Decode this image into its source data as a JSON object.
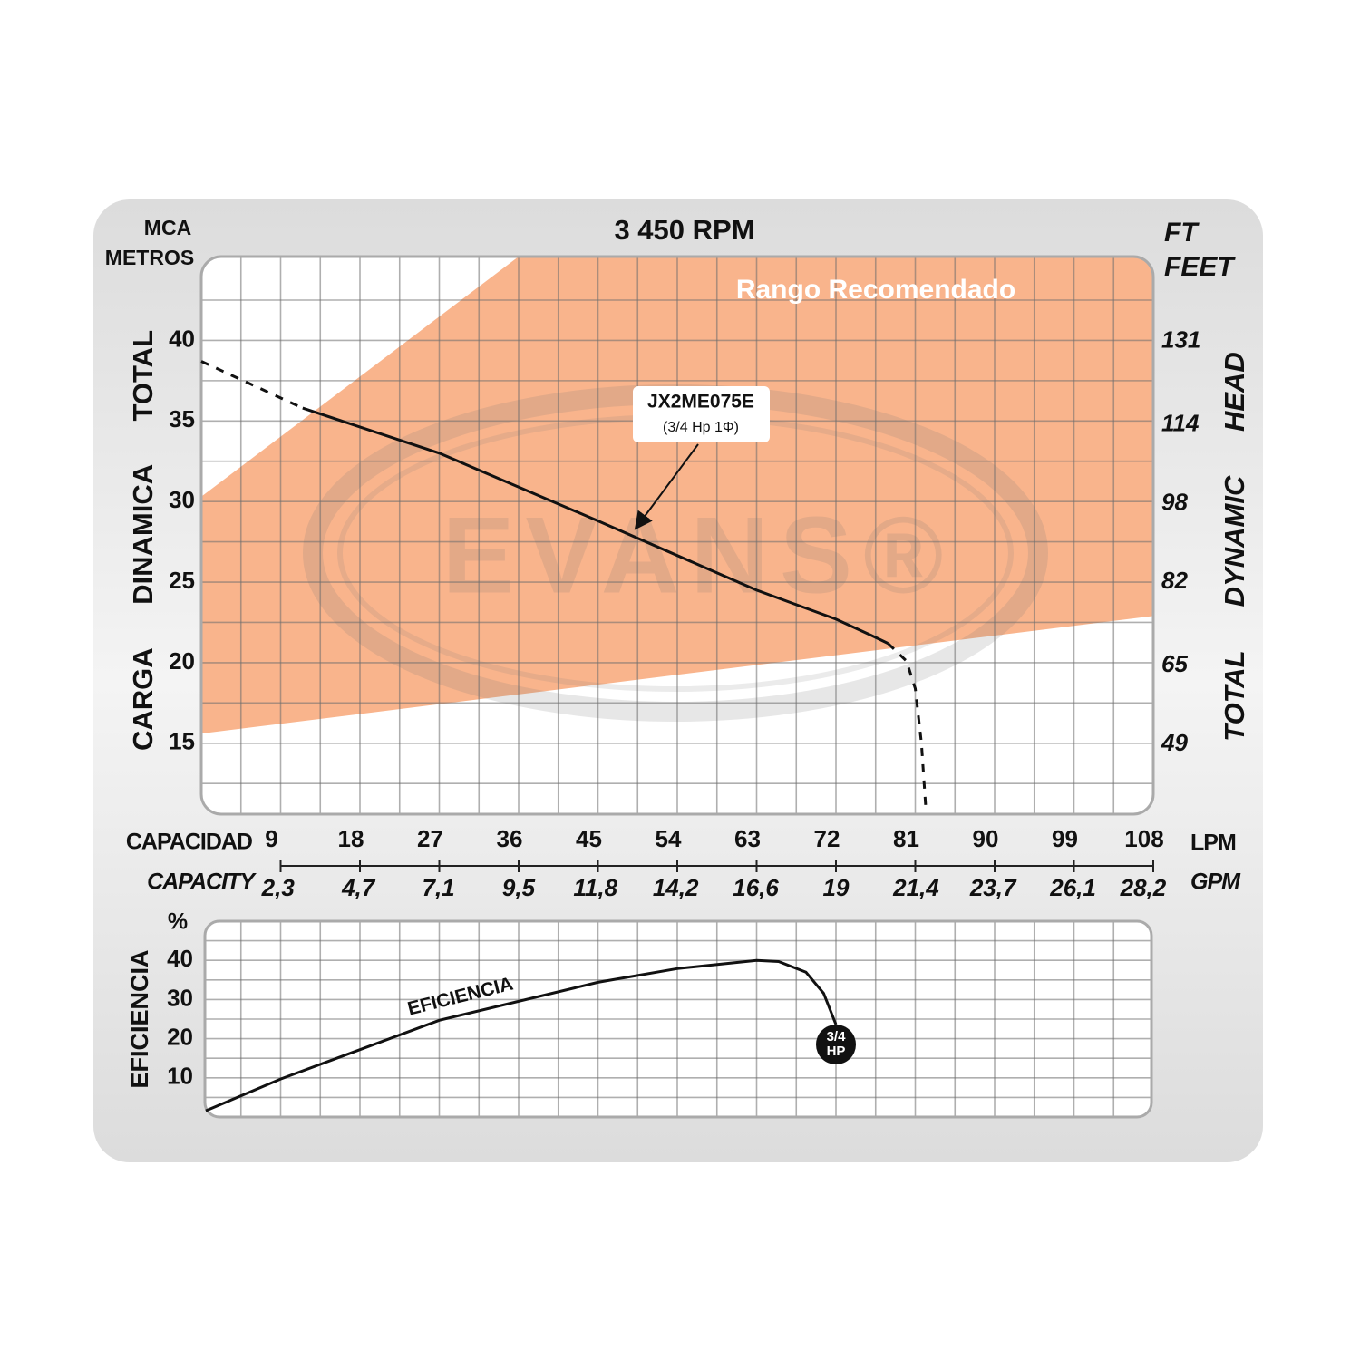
{
  "chart_data": [
    {
      "type": "line",
      "title": "3 450 RPM",
      "ylabel_unit": [
        "MCA",
        "METROS"
      ],
      "ylabel": "CARGA DINAMICA TOTAL",
      "y2label_unit": [
        "FT",
        "FEET"
      ],
      "y2label": "TOTAL DYNAMIC HEAD",
      "xlabel": "CAPACIDAD",
      "xunit": "LPM",
      "x2label": "CAPACITY",
      "x2unit": "GPM",
      "xlim": [
        0,
        108
      ],
      "xticks": [
        9,
        18,
        27,
        36,
        45,
        54,
        63,
        72,
        81,
        90,
        99,
        108
      ],
      "x2lim": [
        0,
        28.5
      ],
      "x2ticks": [
        {
          "value": 2.3,
          "label": "2,3"
        },
        {
          "value": 4.7,
          "label": "4,7"
        },
        {
          "value": 7.1,
          "label": "7,1"
        },
        {
          "value": 9.5,
          "label": "9,5"
        },
        {
          "value": 11.8,
          "label": "11,8"
        },
        {
          "value": 14.2,
          "label": "14,2"
        },
        {
          "value": 16.6,
          "label": "16,6"
        },
        19,
        {
          "value": 21.4,
          "label": "21,4"
        },
        {
          "value": 23.7,
          "label": "23,7"
        },
        {
          "value": 26.1,
          "label": "26,1"
        },
        {
          "value": 28.2,
          "label": "28,2"
        }
      ],
      "ylim": [
        10.6,
        45.2
      ],
      "yticks": [
        15,
        20,
        25,
        30,
        35,
        40
      ],
      "y2lim": [
        34.8,
        148.3
      ],
      "y2ticks": [
        49,
        65,
        82,
        98,
        114,
        131
      ],
      "grid": true,
      "xgrid": [
        4.5,
        9,
        13.5,
        18,
        22.5,
        27,
        31.5,
        36,
        40.5,
        45,
        49.5,
        54,
        58.5,
        63,
        67.5,
        72,
        76.5,
        81,
        85.5,
        90,
        94.5,
        99,
        103.5
      ],
      "ygrid": [
        12.5,
        15,
        17.5,
        20,
        22.5,
        25,
        27.5,
        30,
        32.5,
        35,
        37.5,
        40,
        42.5
      ],
      "region": {
        "label": "Rango Recomendado",
        "color": "#f9b48c",
        "x": [
          0,
          36,
          108,
          108,
          0
        ],
        "values": [
          30.3,
          45.2,
          45.2,
          22.9,
          15.6
        ]
      },
      "watermark": "EVANS®",
      "series": [
        {
          "style": "dashed",
          "color": "#111111",
          "x": [
            0,
            11.5
          ],
          "values": [
            38.7,
            35.8
          ]
        },
        {
          "name": "JX2ME075E",
          "subtitle": "(3/4 Hp 1Φ)",
          "style": "solid",
          "color": "#111111",
          "x": [
            11.5,
            27,
            45,
            63,
            72,
            76,
            77.9
          ],
          "values": [
            35.8,
            33,
            28.8,
            24.5,
            22.7,
            21.7,
            21.2
          ]
        },
        {
          "style": "dashed",
          "color": "#111111",
          "x": [
            77.9,
            80,
            81,
            81.7,
            82.2
          ],
          "values": [
            21.2,
            20.1,
            18.4,
            15,
            10.9
          ]
        }
      ]
    },
    {
      "type": "line",
      "ylabel": "EFICIENCIA",
      "yunit": "%",
      "xlim": [
        0,
        108
      ],
      "ylim": [
        0,
        50
      ],
      "yticks": [
        10,
        20,
        30,
        40
      ],
      "grid": true,
      "xgrid": [
        4.5,
        9,
        13.5,
        18,
        22.5,
        27,
        31.5,
        36,
        40.5,
        45,
        49.5,
        54,
        58.5,
        63,
        67.5,
        72,
        76.5,
        81,
        85.5,
        90,
        94.5,
        99,
        103.5
      ],
      "ygrid": [
        5,
        10,
        15,
        20,
        25,
        30,
        35,
        40,
        45
      ],
      "series": [
        {
          "name": "EFICIENCIA",
          "color": "#111111",
          "end_label": [
            "3/4",
            "HP"
          ],
          "x": [
            0.5,
            9,
            27,
            45,
            54,
            63,
            65.5,
            68.6,
            70.6,
            72
          ],
          "values": [
            1.6,
            9.7,
            24.7,
            34.4,
            37.9,
            40,
            39.7,
            37,
            31.6,
            23.6
          ]
        }
      ]
    }
  ]
}
